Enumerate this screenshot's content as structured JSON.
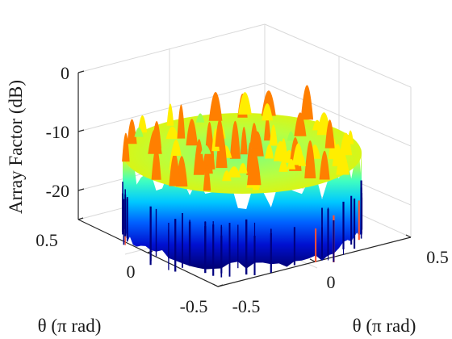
{
  "chart_data": {
    "type": "surface",
    "title": "",
    "xlabel": "θ (π rad)",
    "ylabel": "θ (π rad)",
    "zlabel": "Array Factor (dB)",
    "x_ticks": [
      "-0.5",
      "0",
      "0.5"
    ],
    "y_ticks": [
      "-0.5",
      "0",
      "0.5"
    ],
    "z_ticks": [
      "0",
      "-10",
      "-20"
    ],
    "xlim": [
      -0.5,
      0.5
    ],
    "ylim": [
      -0.5,
      0.5
    ],
    "zlim": [
      -27,
      0
    ],
    "grid": true,
    "colormap": "jet",
    "colors": {
      "low": "#00007f",
      "mid_low": "#0060ff",
      "mid": "#40ffbf",
      "mid_high": "#ffee00",
      "high": "#ff7f00"
    },
    "surface_summary": {
      "rim_level_db": -10,
      "peak_max_db": -1,
      "floor_db": -27,
      "shape": "roughly circular visible region with jagged sidelobe peaks between -12 and -1 dB"
    }
  }
}
